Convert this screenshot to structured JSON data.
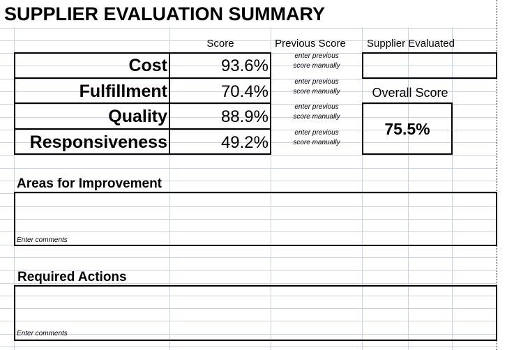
{
  "title": "SUPPLIER EVALUATION SUMMARY",
  "columns": {
    "score": "Score",
    "previous": "Previous Score",
    "supplier": "Supplier Evaluated"
  },
  "rows": [
    {
      "label": "Cost",
      "score": "93.6%",
      "previous": [
        "enter previous",
        "score manually"
      ]
    },
    {
      "label": "Fulfillment",
      "score": "70.4%",
      "previous": [
        "enter previous",
        "score manually"
      ]
    },
    {
      "label": "Quality",
      "score": "88.9%",
      "previous": [
        "enter previous",
        "score manually"
      ]
    },
    {
      "label": "Responsiveness",
      "score": "49.2%",
      "previous": [
        "enter previous",
        "score manually"
      ]
    }
  ],
  "overall": {
    "label": "Overall Score",
    "value": "75.5%"
  },
  "sections": [
    {
      "title": "Areas for Improvement",
      "placeholder": "Enter comments"
    },
    {
      "title": "Required Actions",
      "placeholder": "Enter comments"
    }
  ]
}
